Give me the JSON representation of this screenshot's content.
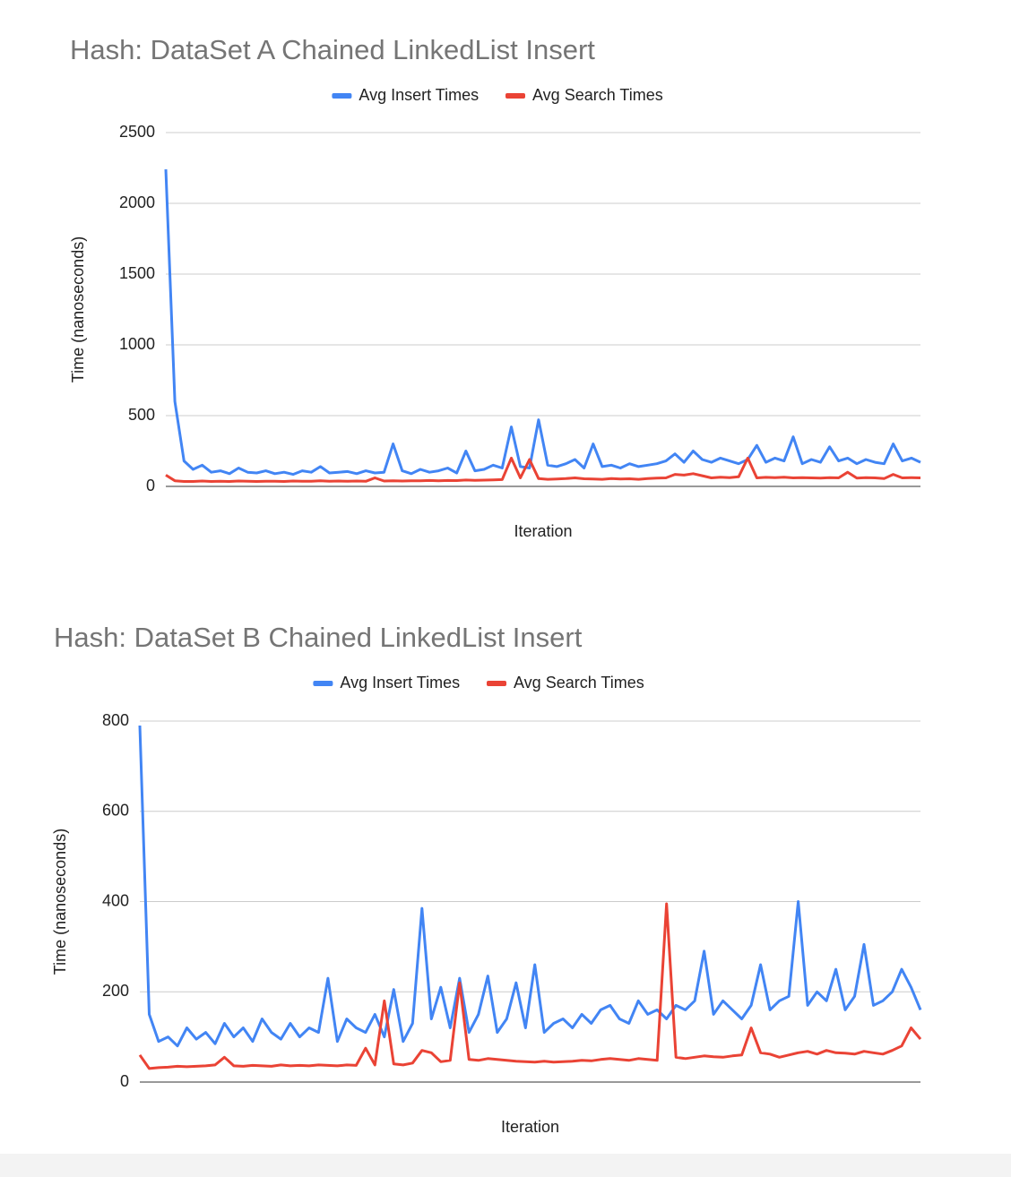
{
  "chart_data": [
    {
      "type": "line",
      "title": "Hash: DataSet A Chained LinkedList Insert",
      "x_label": "Iteration",
      "y_label": "Time (nanoseconds)",
      "ylim": [
        0,
        2500
      ],
      "yticks": [
        0,
        500,
        1000,
        1500,
        2000,
        2500
      ],
      "grid": true,
      "legend": "top",
      "series": [
        {
          "name": "Avg Insert Times",
          "color": "#4285f4",
          "values": [
            2240,
            600,
            180,
            120,
            150,
            100,
            110,
            90,
            130,
            100,
            95,
            110,
            90,
            100,
            85,
            110,
            100,
            140,
            95,
            100,
            105,
            90,
            110,
            95,
            100,
            300,
            110,
            90,
            120,
            100,
            110,
            130,
            95,
            250,
            110,
            120,
            150,
            130,
            420,
            140,
            130,
            470,
            150,
            140,
            160,
            190,
            130,
            300,
            140,
            150,
            130,
            160,
            140,
            150,
            160,
            180,
            230,
            170,
            250,
            190,
            170,
            200,
            180,
            160,
            190,
            290,
            170,
            200,
            180,
            350,
            160,
            190,
            170,
            280,
            180,
            200,
            160,
            190,
            170,
            160,
            300,
            180,
            200,
            170
          ]
        },
        {
          "name": "Avg Search Times",
          "color": "#ea4335",
          "values": [
            80,
            40,
            35,
            35,
            38,
            35,
            36,
            35,
            38,
            36,
            35,
            37,
            36,
            35,
            38,
            36,
            37,
            40,
            36,
            38,
            37,
            38,
            36,
            60,
            38,
            40,
            38,
            39,
            40,
            42,
            40,
            42,
            41,
            45,
            43,
            44,
            46,
            48,
            200,
            60,
            190,
            55,
            50,
            52,
            55,
            60,
            54,
            52,
            50,
            55,
            52,
            54,
            50,
            55,
            58,
            60,
            85,
            80,
            90,
            75,
            60,
            65,
            62,
            68,
            200,
            60,
            64,
            62,
            65,
            60,
            62,
            60,
            58,
            62,
            60,
            100,
            58,
            62,
            60,
            55,
            85,
            60,
            62,
            60
          ]
        }
      ]
    },
    {
      "type": "line",
      "title": "Hash: DataSet B Chained LinkedList Insert",
      "x_label": "Iteration",
      "y_label": "Time (nanoseconds)",
      "ylim": [
        0,
        800
      ],
      "yticks": [
        0,
        200,
        400,
        600,
        800
      ],
      "grid": true,
      "legend": "top",
      "series": [
        {
          "name": "Avg Insert Times",
          "color": "#4285f4",
          "values": [
            790,
            150,
            90,
            100,
            80,
            120,
            95,
            110,
            85,
            130,
            100,
            120,
            90,
            140,
            110,
            95,
            130,
            100,
            120,
            110,
            230,
            90,
            140,
            120,
            110,
            150,
            100,
            205,
            90,
            130,
            385,
            140,
            210,
            120,
            230,
            110,
            150,
            235,
            110,
            140,
            220,
            120,
            260,
            110,
            130,
            140,
            120,
            150,
            130,
            160,
            170,
            140,
            130,
            180,
            150,
            160,
            140,
            170,
            160,
            180,
            290,
            150,
            180,
            160,
            140,
            170,
            260,
            160,
            180,
            190,
            400,
            170,
            200,
            180,
            250,
            160,
            190,
            305,
            170,
            180,
            200,
            250,
            210,
            160
          ]
        },
        {
          "name": "Avg Search Times",
          "color": "#ea4335",
          "values": [
            60,
            30,
            32,
            33,
            35,
            34,
            35,
            36,
            38,
            55,
            36,
            35,
            37,
            36,
            35,
            38,
            36,
            37,
            36,
            38,
            37,
            36,
            38,
            37,
            75,
            38,
            180,
            40,
            38,
            42,
            70,
            65,
            45,
            48,
            220,
            50,
            48,
            52,
            50,
            48,
            46,
            45,
            44,
            46,
            44,
            45,
            46,
            48,
            47,
            50,
            52,
            50,
            48,
            52,
            50,
            48,
            395,
            55,
            52,
            55,
            58,
            56,
            55,
            58,
            60,
            120,
            65,
            62,
            55,
            60,
            65,
            68,
            62,
            70,
            65,
            64,
            62,
            68,
            65,
            62,
            70,
            80,
            120,
            95
          ]
        }
      ]
    }
  ]
}
